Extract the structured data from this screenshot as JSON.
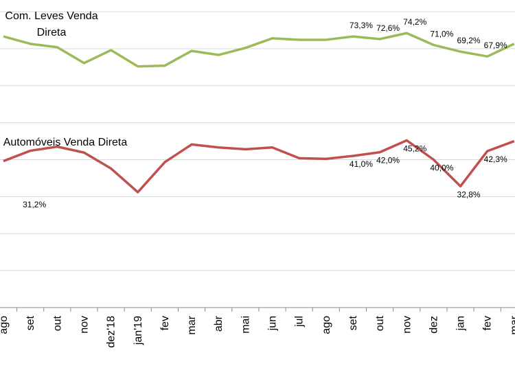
{
  "chart_data": {
    "type": "line",
    "categories": [
      "ago",
      "set",
      "out",
      "nov",
      "dez'18",
      "jan'19",
      "fev",
      "mar",
      "abr",
      "mai",
      "jun",
      "jul",
      "ago",
      "set",
      "out",
      "nov",
      "dez",
      "jan",
      "fev",
      "mar"
    ],
    "series": [
      {
        "name": "Com. Leves Venda Direta",
        "color": "#9bbb59",
        "values": [
          73.3,
          71.3,
          70.4,
          66.1,
          69.6,
          65.2,
          65.4,
          69.4,
          68.3,
          70.2,
          72.8,
          72.4,
          72.4,
          73.3,
          72.6,
          74.2,
          71.0,
          69.2,
          67.9,
          71.3
        ],
        "value_labels": [
          null,
          null,
          null,
          null,
          null,
          null,
          null,
          null,
          null,
          null,
          null,
          null,
          null,
          "73,3%",
          "72,6%",
          "74,2%",
          "71,0%",
          "69,2%",
          "67,9%",
          null
        ]
      },
      {
        "name": "Automóveis Venda Direta",
        "color": "#c0504d",
        "values": [
          39.6,
          42.4,
          43.5,
          41.9,
          37.6,
          31.2,
          39.3,
          44.1,
          43.3,
          42.8,
          43.3,
          40.4,
          40.2,
          41.0,
          42.0,
          45.2,
          40.0,
          32.8,
          42.3,
          45.0
        ],
        "value_labels": [
          null,
          null,
          null,
          null,
          null,
          "31,2%",
          null,
          null,
          null,
          null,
          null,
          null,
          null,
          "41,0%",
          "42,0%",
          "45,2%",
          "40,0%",
          "32,8%",
          "42,3%",
          null
        ]
      }
    ],
    "ylim": [
      0,
      80
    ],
    "yticks": [
      0,
      10,
      20,
      30,
      40,
      50,
      60,
      70,
      80
    ],
    "grid": true
  }
}
